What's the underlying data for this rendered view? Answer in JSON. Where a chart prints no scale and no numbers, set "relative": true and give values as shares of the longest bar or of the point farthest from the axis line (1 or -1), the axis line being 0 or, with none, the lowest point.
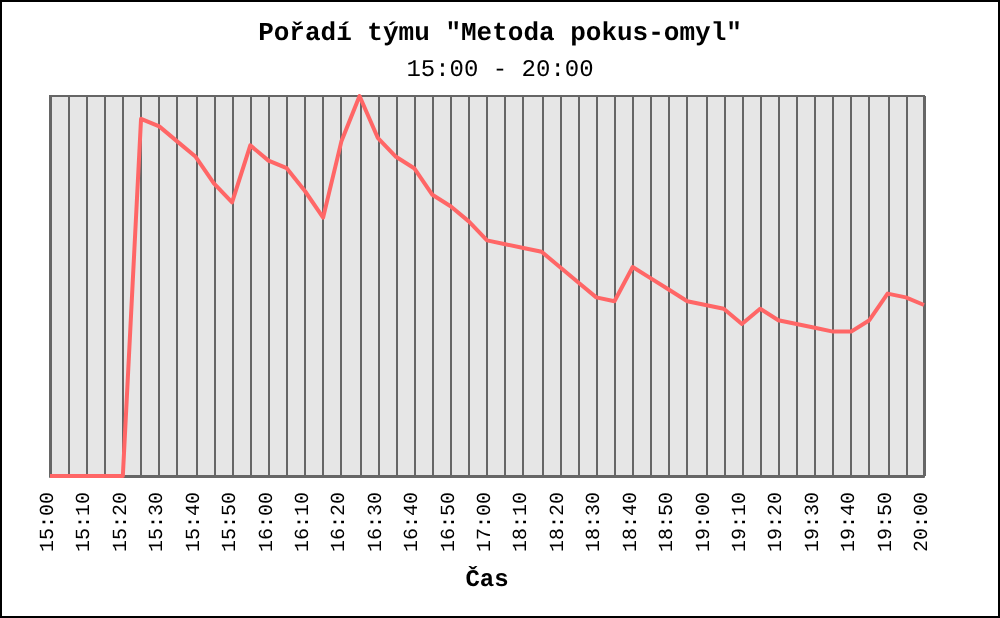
{
  "chart_data": {
    "type": "line",
    "title": "Pořadí týmu \"Metoda pokus-omyl\"",
    "subtitle": "15:00 - 20:00",
    "xlabel": "Čas",
    "relative": true,
    "grid": "x",
    "marker": "none",
    "line_style": "solid",
    "categories": [
      "15:00",
      null,
      "15:10",
      null,
      "15:20",
      null,
      "15:30",
      null,
      "15:40",
      null,
      "15:50",
      null,
      "16:00",
      null,
      "16:10",
      null,
      "16:20",
      null,
      "16:30",
      null,
      "16:40",
      null,
      "16:50",
      null,
      "17:00",
      null,
      "18:10",
      null,
      "18:20",
      null,
      "18:30",
      null,
      "18:40",
      null,
      "18:50",
      null,
      "19:00",
      null,
      "19:10",
      null,
      "19:20",
      null,
      "19:30",
      null,
      "19:40",
      null,
      "19:50",
      null,
      "20:00"
    ],
    "series": [
      {
        "color": "#ff6666",
        "values": [
          0,
          0,
          0,
          0,
          0,
          0.94,
          0.92,
          0.88,
          0.84,
          0.77,
          0.72,
          0.87,
          0.83,
          0.81,
          0.75,
          0.68,
          0.88,
          1,
          0.89,
          0.84,
          0.81,
          0.74,
          0.71,
          0.67,
          0.62,
          0.61,
          0.6,
          0.59,
          0.55,
          0.51,
          0.47,
          0.46,
          0.55,
          0.52,
          0.49,
          0.46,
          0.45,
          0.44,
          0.4,
          0.44,
          0.41,
          0.4,
          0.39,
          0.38,
          0.38,
          0.41,
          0.48,
          0.47,
          0.45
        ]
      }
    ]
  }
}
